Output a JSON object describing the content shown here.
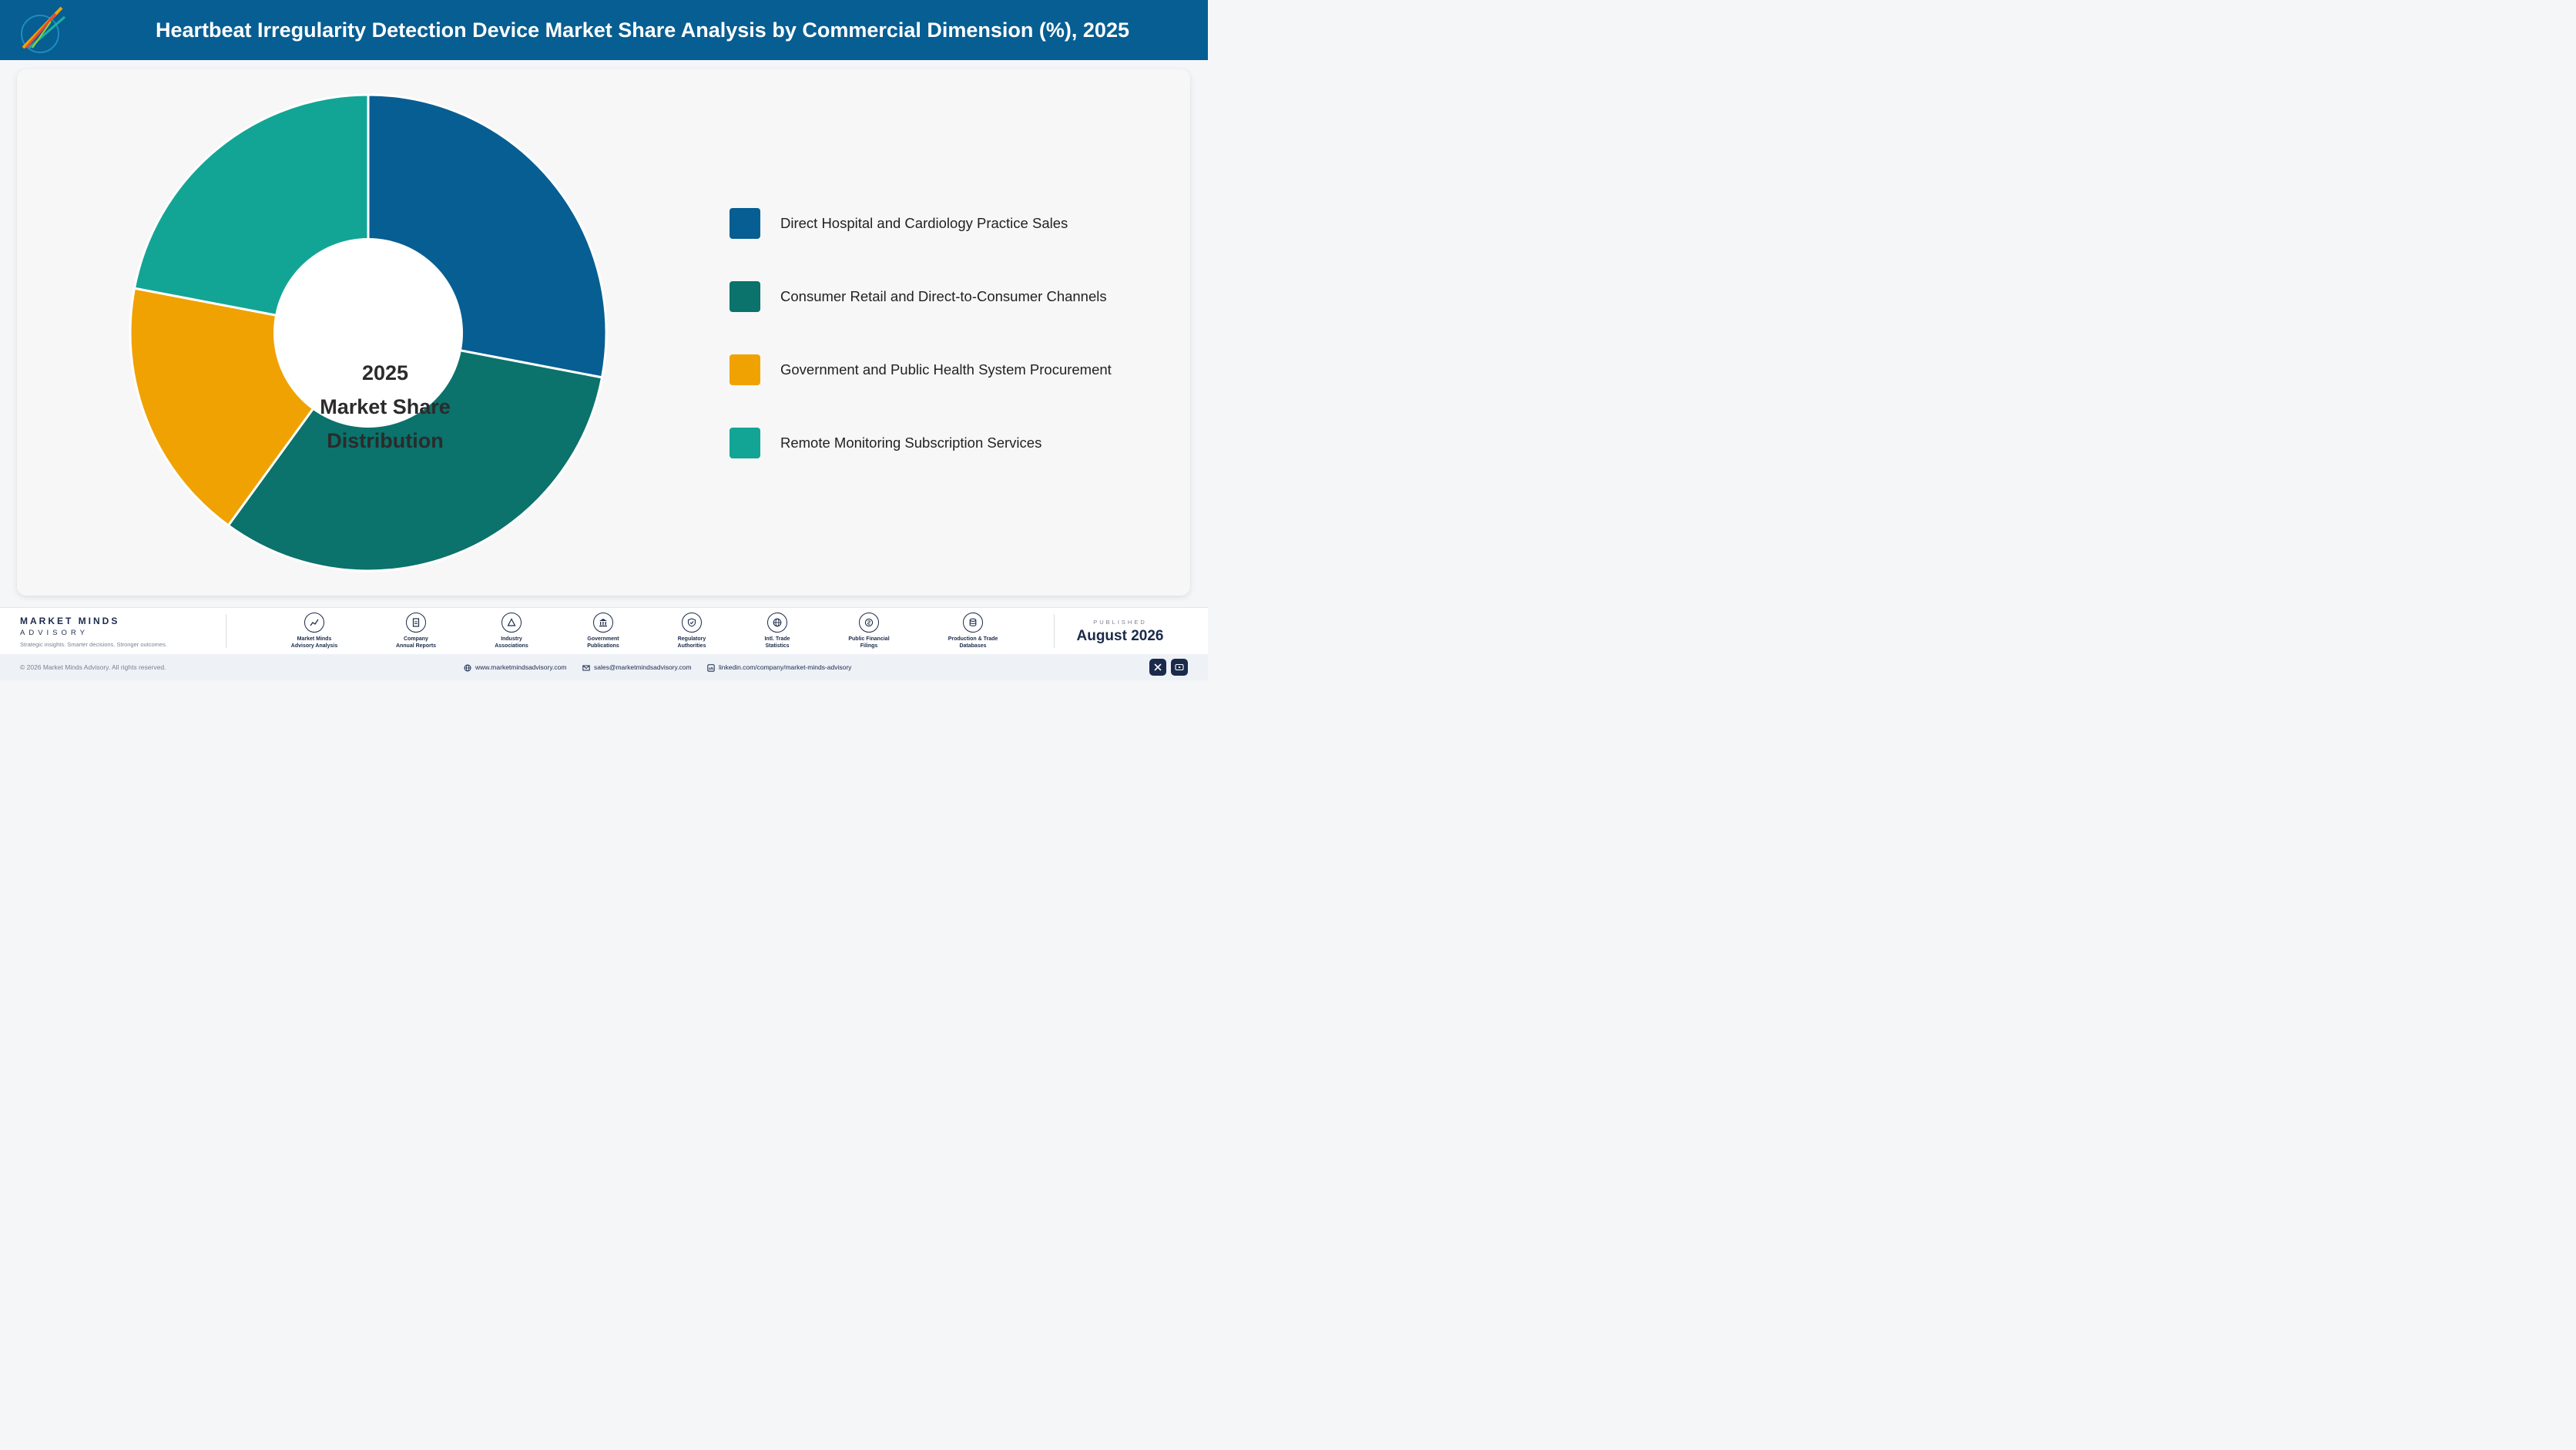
{
  "header": {
    "title": "Heartbeat Irregularity Detection Device Market Share Analysis by Commercial Dimension (%), 2025"
  },
  "chart_data": {
    "type": "pie",
    "donut": true,
    "center_label": [
      "2025",
      "Market Share",
      "Distribution"
    ],
    "categories": [
      "Direct Hospital and Cardiology Practice Sales",
      "Consumer Retail and Direct-to-Consumer Channels",
      "Government and Public Health System Procurement",
      "Remote Monitoring Subscription Services"
    ],
    "values": [
      28,
      32,
      18,
      22
    ],
    "colors": [
      "#075e92",
      "#0b726c",
      "#f0a202",
      "#12a595"
    ],
    "legend_position": "right"
  },
  "footer": {
    "brand_name": "MARKET MINDS",
    "brand_sub": "ADVISORY",
    "tagline": "Strategic insights. Smarter decisions. Stronger outcomes.",
    "sources": [
      {
        "line1": "Market Minds",
        "line2": "Advisory Analysis",
        "icon": "chart-line-icon"
      },
      {
        "line1": "Company",
        "line2": "Annual Reports",
        "icon": "document-icon"
      },
      {
        "line1": "Industry",
        "line2": "Associations",
        "icon": "network-icon"
      },
      {
        "line1": "Government",
        "line2": "Publications",
        "icon": "government-building-icon"
      },
      {
        "line1": "Regulatory",
        "line2": "Authorities",
        "icon": "shield-check-icon"
      },
      {
        "line1": "Intl. Trade",
        "line2": "Statistics",
        "icon": "globe-icon"
      },
      {
        "line1": "Public Financial",
        "line2": "Filings",
        "icon": "coin-icon"
      },
      {
        "line1": "Production & Trade",
        "line2": "Databases",
        "icon": "database-icon"
      }
    ],
    "published_label": "PUBLISHED",
    "published_date": "August 2026",
    "copyright": "© 2026 Market Minds Advisory. All rights reserved.",
    "website": "www.marketmindsadvisory.com",
    "email": "sales@marketmindsadvisory.com",
    "linkedin": "linkedin.com/company/market-minds-advisory"
  }
}
